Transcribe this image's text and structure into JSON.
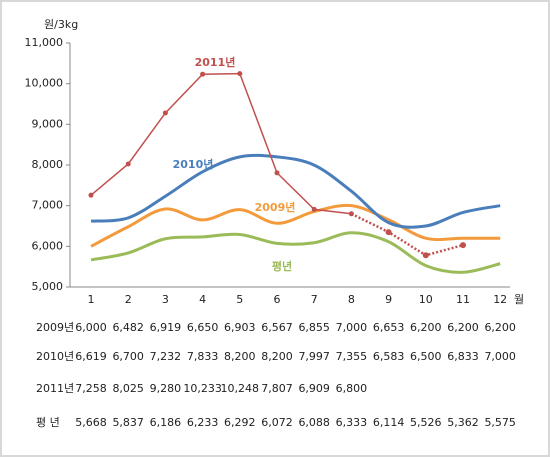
{
  "chart_data": {
    "type": "line",
    "y_label": "원/3kg",
    "x_label": "월",
    "categories": [
      "1",
      "2",
      "3",
      "4",
      "5",
      "6",
      "7",
      "8",
      "9",
      "10",
      "11",
      "12"
    ],
    "ylim": [
      5000,
      11000
    ],
    "yticks": [
      {
        "value": 5000,
        "label": "5,000"
      },
      {
        "value": 6000,
        "label": "6,000"
      },
      {
        "value": 7000,
        "label": "7,000"
      },
      {
        "value": 8000,
        "label": "8,000"
      },
      {
        "value": 9000,
        "label": "9,000"
      },
      {
        "value": 10000,
        "label": "10,000"
      },
      {
        "value": 11000,
        "label": "11,000"
      }
    ],
    "series": [
      {
        "name": "2009년",
        "color": "#f39a3c",
        "smooth": true,
        "values": [
          6000,
          6482,
          6919,
          6650,
          6903,
          6567,
          6855,
          7000,
          6653,
          6200,
          6200,
          6200
        ],
        "value_labels": [
          "6,000",
          "6,482",
          "6,919",
          "6,650",
          "6,903",
          "6,567",
          "6,855",
          "7,000",
          "6,653",
          "6,200",
          "6,200",
          "6,200"
        ]
      },
      {
        "name": "2010년",
        "color": "#4a7ebb",
        "smooth": true,
        "values": [
          6619,
          6700,
          7232,
          7833,
          8200,
          8200,
          7997,
          7355,
          6583,
          6500,
          6833,
          7000
        ],
        "value_labels": [
          "6,619",
          "6,700",
          "7,232",
          "7,833",
          "8,200",
          "8,200",
          "7,997",
          "7,355",
          "6,583",
          "6,500",
          "6,833",
          "7,000"
        ]
      },
      {
        "name": "2011년",
        "color": "#c0504d",
        "smooth": false,
        "markers": true,
        "values": [
          7258,
          8025,
          9280,
          10233,
          10248,
          7807,
          6909,
          6800,
          null,
          null,
          null,
          null
        ],
        "value_labels": [
          "7,258",
          "8,025",
          "9,280",
          "10,233",
          "10,248",
          "7,807",
          "6,909",
          "6,800",
          null,
          null,
          null,
          null
        ]
      },
      {
        "name": "평년",
        "color": "#9bbb59",
        "smooth": true,
        "values": [
          5668,
          5837,
          6186,
          6233,
          6292,
          6072,
          6088,
          6333,
          6114,
          5526,
          5362,
          5575
        ],
        "value_labels": [
          "5,668",
          "5,837",
          "6,186",
          "6,233",
          "6,292",
          "6,072",
          "6,088",
          "6,333",
          "6,114",
          "5,526",
          "5,362",
          "5,575"
        ]
      }
    ],
    "projection": {
      "color": "#c0504d",
      "dashed": true,
      "from_series": 2,
      "values": [
        null,
        null,
        null,
        null,
        null,
        null,
        null,
        null,
        6350,
        5780,
        6030,
        null
      ]
    },
    "table_row_labels": [
      "2009년",
      "2010년",
      "2011년",
      "평   년"
    ]
  }
}
